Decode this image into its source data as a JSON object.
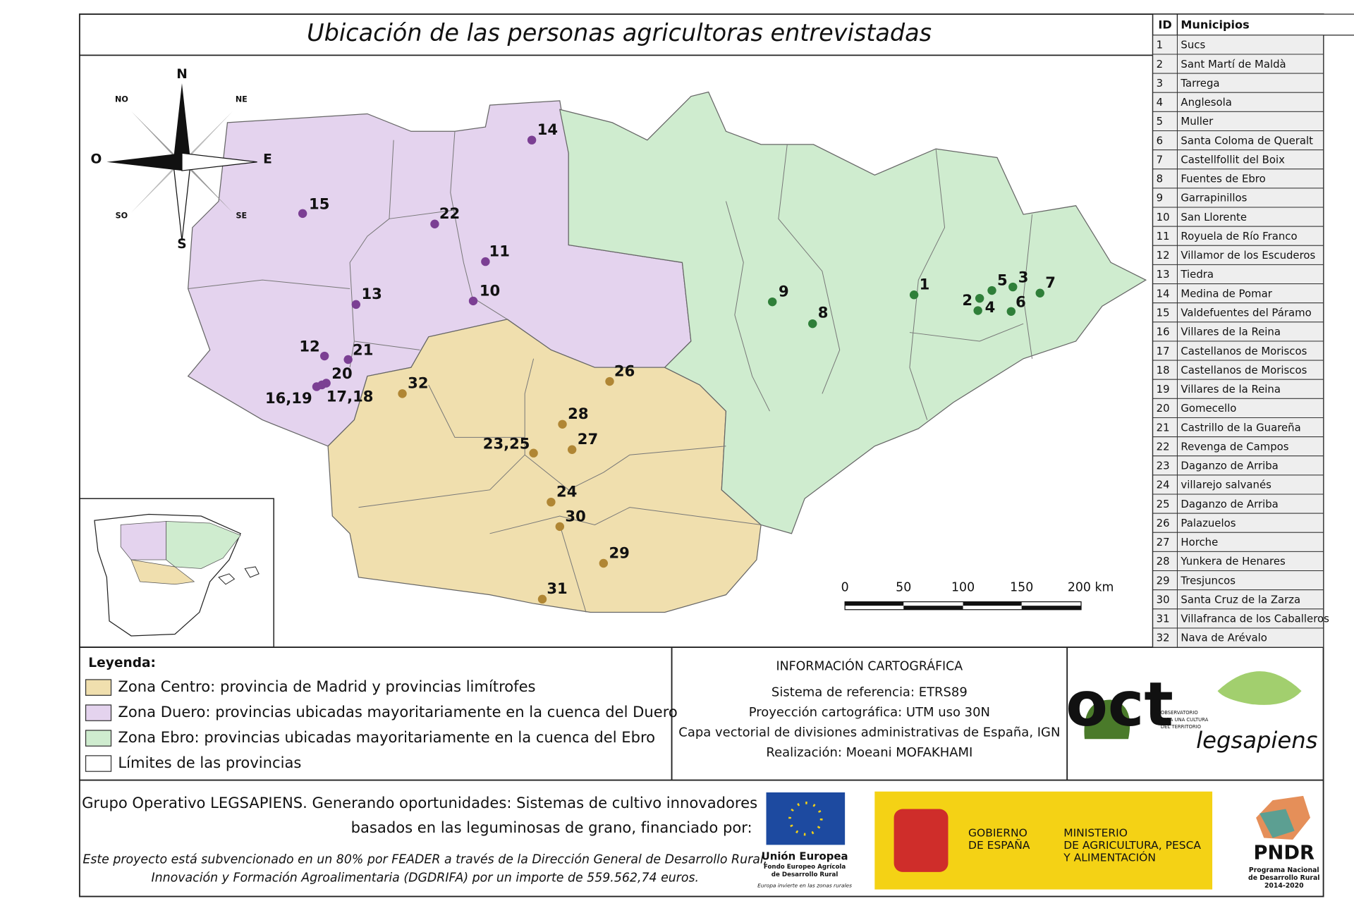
{
  "title": "Ubicación de las personas agricultoras entrevistadas",
  "compass": {
    "n": "N",
    "s": "S",
    "e": "E",
    "o": "O",
    "ne": "NE",
    "no": "NO",
    "se": "SE",
    "so": "SO"
  },
  "map_points": [
    {
      "color": "#7b3f93",
      "labels": [
        "14",
        "15",
        "22",
        "11",
        "10",
        "13",
        "12",
        "21",
        "20",
        "16,19",
        "17,18"
      ]
    },
    {
      "color": "#b08634",
      "labels": [
        "32",
        "26",
        "28",
        "27",
        "23,25",
        "24",
        "30",
        "29",
        "31"
      ]
    },
    {
      "color": "#2f7f39",
      "labels": [
        "9",
        "8",
        "1",
        "2",
        "4",
        "5",
        "3",
        "6",
        "7"
      ]
    }
  ],
  "scale": {
    "labels": [
      "0",
      "50",
      "100",
      "150",
      "200 km"
    ]
  },
  "table": {
    "header": [
      "ID",
      "Municipios"
    ],
    "rows": [
      [
        "1",
        "Sucs"
      ],
      [
        "2",
        "Sant Martí de Maldà"
      ],
      [
        "3",
        "Tarrega"
      ],
      [
        "4",
        "Anglesola"
      ],
      [
        "5",
        "Muller"
      ],
      [
        "6",
        "Santa Coloma de Queralt"
      ],
      [
        "7",
        "Castellfollit del Boix"
      ],
      [
        "8",
        "Fuentes de Ebro"
      ],
      [
        "9",
        "Garrapinillos"
      ],
      [
        "10",
        "San Llorente"
      ],
      [
        "11",
        "Royuela de Río Franco"
      ],
      [
        "12",
        "Villamor de los Escuderos"
      ],
      [
        "13",
        "Tiedra"
      ],
      [
        "14",
        "Medina de Pomar"
      ],
      [
        "15",
        "Valdefuentes del Páramo"
      ],
      [
        "16",
        "Villares de la Reina"
      ],
      [
        "17",
        "Castellanos de Moriscos"
      ],
      [
        "18",
        "Castellanos de Moriscos"
      ],
      [
        "19",
        "Villares de la Reina"
      ],
      [
        "20",
        "Gomecello"
      ],
      [
        "21",
        "Castrillo de la Guareña"
      ],
      [
        "22",
        "Revenga de Campos"
      ],
      [
        "23",
        "Daganzo de Arriba"
      ],
      [
        "24",
        "villarejo salvanés"
      ],
      [
        "25",
        "Daganzo de Arriba"
      ],
      [
        "26",
        "Palazuelos"
      ],
      [
        "27",
        "Horche"
      ],
      [
        "28",
        "Yunkera de Henares"
      ],
      [
        "29",
        "Tresjuncos"
      ],
      [
        "30",
        "Santa Cruz de la Zarza"
      ],
      [
        "31",
        "Villafranca de los Caballeros"
      ],
      [
        "32",
        "Nava de Arévalo"
      ]
    ]
  },
  "legend": {
    "title": "Leyenda:",
    "items": [
      {
        "label": "Zona Centro: provincia de Madrid y provincias limítrofes",
        "color": "#f0dfae"
      },
      {
        "label": "Zona Duero: provincias ubicadas mayoritariamente en la cuenca del Duero",
        "color": "#e4d3ee"
      },
      {
        "label": "Zona Ebro: provincias ubicadas mayoritariamente en la cuenca del Ebro",
        "color": "#cfeccf"
      },
      {
        "label": "Límites de las provincias",
        "color": "#ffffff"
      }
    ]
  },
  "cartography": {
    "title": "INFORMACIÓN CARTOGRÁFICA",
    "lines": [
      "Sistema de referencia: ETRS89",
      "Proyección cartográfica: UTM uso 30N",
      "Capa vectorial de divisiones administrativas de España, IGN",
      "Realización: Moeani MOFAKHAMI"
    ]
  },
  "logos": {
    "oct": "oct",
    "oct_caption": [
      "OBSERVATORIO",
      "PARA UNA CULTURA",
      "DEL TERRITORIO"
    ],
    "legsapiens": "legsapiens",
    "eu": [
      "Unión Europea",
      "Fondo Europeo Agrícola",
      "de Desarrollo Rural",
      "Europa invierte en las zonas rurales"
    ],
    "gobierno": [
      "GOBIERNO",
      "DE ESPAÑA"
    ],
    "ministerio": [
      "MINISTERIO",
      "DE AGRICULTURA, PESCA",
      "Y ALIMENTACIÓN"
    ],
    "pndr": [
      "PNDR",
      "Programa Nacional",
      "de Desarrollo Rural",
      "2014-2020"
    ]
  },
  "footer": {
    "lines": [
      "Grupo Operativo LEGSAPIENS. Generando oportunidades: Sistemas de cultivo innovadores",
      "basados en las leguminosas de grano, financiado por:"
    ],
    "notes": [
      "Este proyecto está subvencionado en un 80% por FEADER a través de la Dirección General de Desarrollo Rural,",
      "Innovación y Formación Agroalimentaria (DGDRIFA) por un importe de 559.562,74 euros."
    ]
  }
}
